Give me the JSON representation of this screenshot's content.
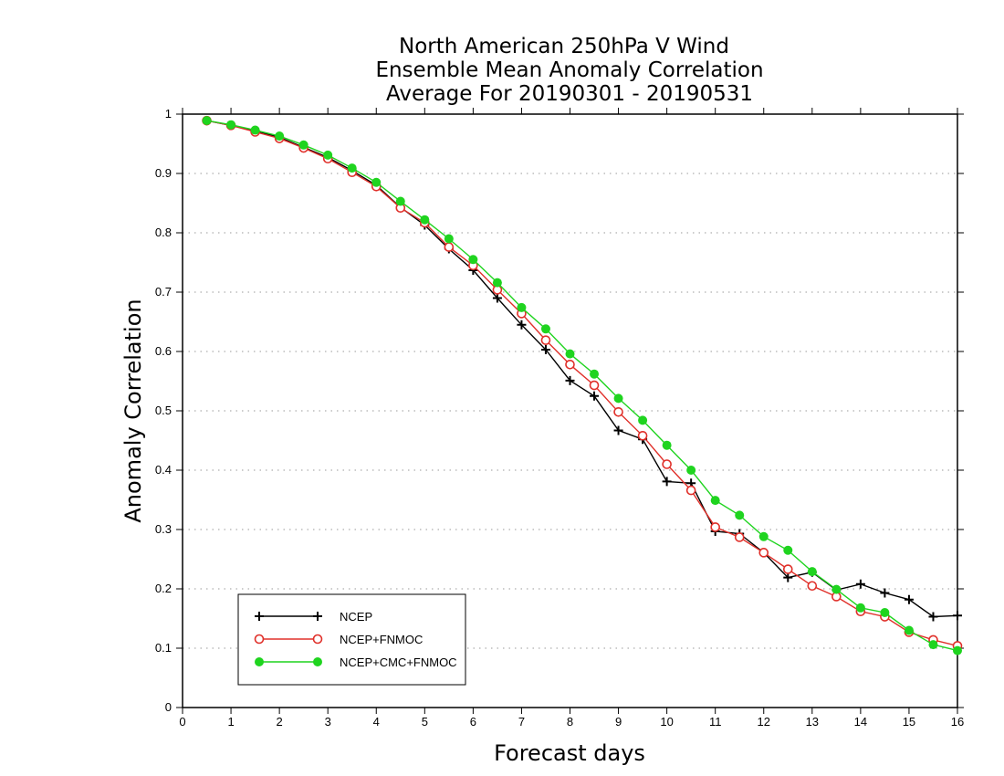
{
  "chart_data": {
    "type": "line",
    "title": [
      "North American 250hPa V Wind",
      "Ensemble Mean Anomaly Correlation",
      "Average For 20190301 - 20190531"
    ],
    "xlabel": "Forecast days",
    "ylabel": "Anomaly Correlation",
    "xlim": [
      0,
      16
    ],
    "ylim": [
      0,
      1
    ],
    "xticks": [
      "0",
      "1",
      "2",
      "3",
      "4",
      "5",
      "6",
      "7",
      "8",
      "9",
      "10",
      "11",
      "12",
      "13",
      "14",
      "15",
      "16"
    ],
    "yticks": [
      "0",
      "0.1",
      "0.2",
      "0.3",
      "0.4",
      "0.5",
      "0.6",
      "0.7",
      "0.8",
      "0.9",
      "1"
    ],
    "grid": "horizontal dotted",
    "legend_position": "bottom-left",
    "x": [
      0.5,
      1,
      1.5,
      2,
      2.5,
      3,
      3.5,
      4,
      4.5,
      5,
      5.5,
      6,
      6.5,
      7,
      7.5,
      8,
      8.5,
      9,
      9.5,
      10,
      10.5,
      11,
      11.5,
      12,
      12.5,
      13,
      13.5,
      14,
      14.5,
      15,
      15.5,
      16
    ],
    "series": [
      {
        "name": "NCEP",
        "color": "#000000",
        "marker": "plus",
        "values": [
          0.989,
          0.981,
          0.972,
          0.961,
          0.944,
          0.927,
          0.905,
          0.88,
          0.843,
          0.813,
          0.773,
          0.737,
          0.69,
          0.645,
          0.603,
          0.551,
          0.525,
          0.467,
          0.452,
          0.381,
          0.378,
          0.297,
          0.293,
          0.261,
          0.219,
          0.228,
          0.198,
          0.208,
          0.193,
          0.182,
          0.153,
          0.155
        ]
      },
      {
        "name": "NCEP+FNMOC",
        "color": "#e0302a",
        "marker": "open-circle",
        "values": [
          0.989,
          0.981,
          0.97,
          0.959,
          0.943,
          0.925,
          0.902,
          0.878,
          0.842,
          0.817,
          0.776,
          0.745,
          0.704,
          0.664,
          0.619,
          0.578,
          0.543,
          0.498,
          0.458,
          0.41,
          0.366,
          0.304,
          0.287,
          0.261,
          0.233,
          0.205,
          0.187,
          0.162,
          0.153,
          0.127,
          0.114,
          0.104
        ]
      },
      {
        "name": "NCEP+CMC+FNMOC",
        "color": "#1fd41f",
        "marker": "filled-circle",
        "values": [
          0.989,
          0.982,
          0.973,
          0.963,
          0.948,
          0.931,
          0.909,
          0.885,
          0.853,
          0.822,
          0.79,
          0.755,
          0.716,
          0.674,
          0.638,
          0.596,
          0.562,
          0.521,
          0.484,
          0.442,
          0.4,
          0.349,
          0.324,
          0.288,
          0.265,
          0.229,
          0.199,
          0.168,
          0.16,
          0.13,
          0.106,
          0.096
        ]
      }
    ]
  }
}
